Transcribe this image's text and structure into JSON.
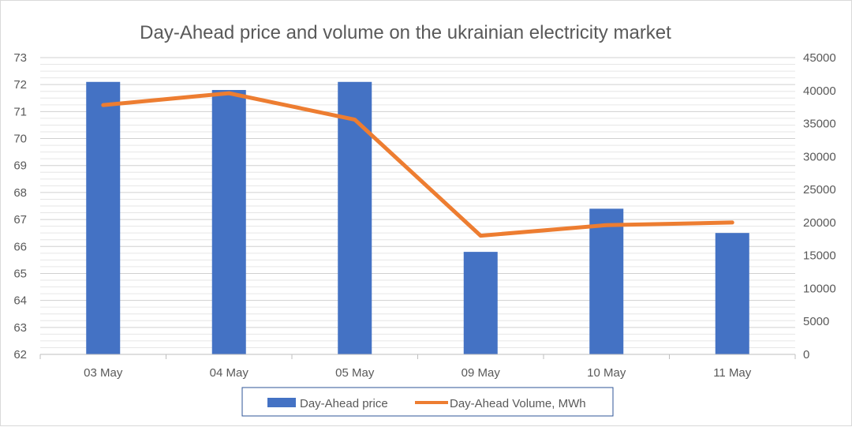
{
  "chart_data": {
    "type": "bar+line",
    "title": "Day-Ahead price and volume on the ukrainian electricity market",
    "categories": [
      "03 May",
      "04 May",
      "05 May",
      "09 May",
      "10 May",
      "11 May"
    ],
    "series": [
      {
        "name": "Day-Ahead price",
        "type": "bar",
        "axis": "left",
        "color": "#4472C4",
        "values": [
          72.1,
          71.8,
          72.1,
          65.8,
          67.4,
          66.5
        ]
      },
      {
        "name": "Day-Ahead Volume, MWh",
        "type": "line",
        "axis": "right",
        "color": "#ED7D31",
        "values": [
          37800,
          39600,
          35600,
          18000,
          19600,
          20000
        ]
      }
    ],
    "y_left": {
      "min": 62,
      "max": 73,
      "step": 1,
      "ticks": [
        "62",
        "63",
        "64",
        "65",
        "66",
        "67",
        "68",
        "69",
        "70",
        "71",
        "72",
        "73"
      ]
    },
    "y_right": {
      "min": 0,
      "max": 45000,
      "step": 5000,
      "ticks": [
        "0",
        "5000",
        "10000",
        "15000",
        "20000",
        "25000",
        "30000",
        "35000",
        "40000",
        "45000"
      ]
    },
    "grid": true,
    "legend_position": "bottom"
  }
}
